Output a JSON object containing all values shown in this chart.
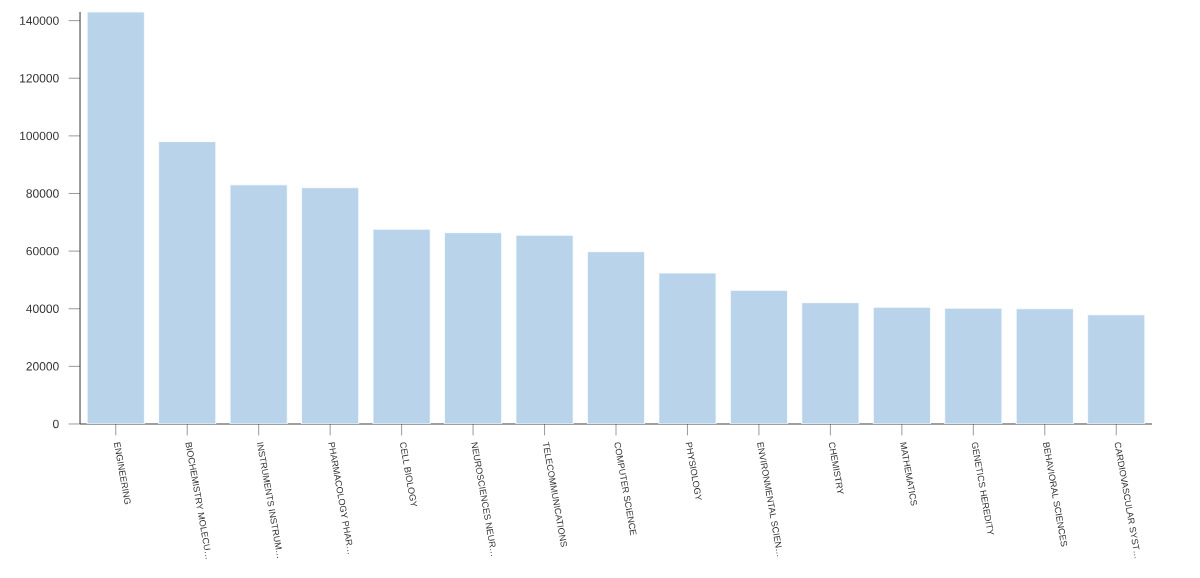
{
  "chart_data": {
    "type": "bar",
    "categories": [
      "ENGINEERING",
      "BIOCHEMISTRY MOLECU…",
      "INSTRUMENTS INSTRUM…",
      "PHARMACOLOGY PHAR…",
      "CELL BIOLOGY",
      "NEUROSCIENCES NEUR…",
      "TELECOMMUNICATIONS",
      "COMPUTER SCIENCE",
      "PHYSIOLOGY",
      "ENVIRONMENTAL SCIEN…",
      "CHEMISTRY",
      "MATHEMATICS",
      "GENETICS HEREDITY",
      "BEHAVIORAL SCIENCES",
      "CARDIOVASCULAR SYST…"
    ],
    "values": [
      143000,
      98000,
      83000,
      82000,
      67600,
      66400,
      65500,
      59800,
      52400,
      46400,
      42100,
      40500,
      40200,
      40000,
      37900
    ],
    "color": "#b8d3ea",
    "ylim": [
      0,
      143000
    ],
    "yticks": [
      0,
      20000,
      40000,
      60000,
      80000,
      100000,
      120000,
      140000
    ],
    "grid": false
  }
}
